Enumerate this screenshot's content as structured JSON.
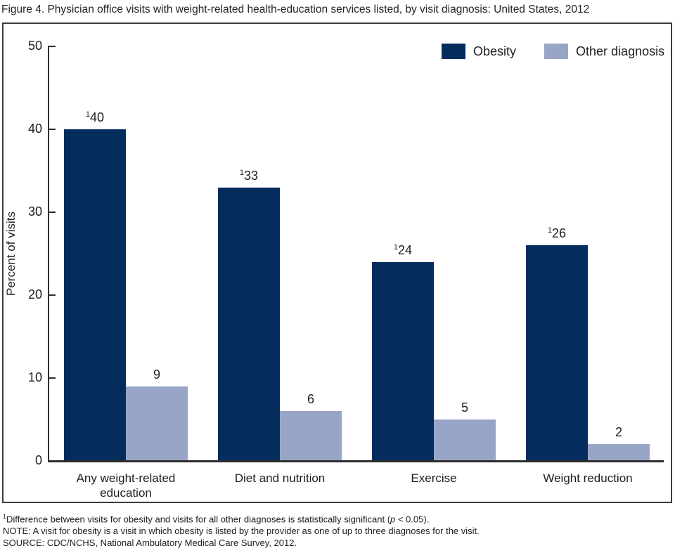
{
  "title": "Figure 4. Physician office visits with weight-related health-education services listed, by visit diagnosis: United States, 2012",
  "chart_data": {
    "type": "bar",
    "title": "Figure 4. Physician office visits with weight-related health-education services listed, by visit diagnosis: United States, 2012",
    "categories": [
      "Any weight-related\neducation",
      "Diet and nutrition",
      "Exercise",
      "Weight reduction"
    ],
    "series": [
      {
        "name": "Obesity",
        "color": "#042d5e",
        "values": [
          40,
          33,
          24,
          26
        ],
        "label_superscript": "1",
        "data_labels": [
          "40",
          "33",
          "24",
          "26"
        ]
      },
      {
        "name": "Other diagnosis",
        "color": "#99a5c7",
        "values": [
          9,
          6,
          5,
          2
        ],
        "label_superscript": "",
        "data_labels": [
          "9",
          "6",
          "5",
          "2"
        ]
      }
    ],
    "xlabel": "",
    "ylabel": "Percent of visits",
    "ylim": [
      0,
      50
    ],
    "yticks": [
      0,
      10,
      20,
      30,
      40,
      50
    ],
    "grid": false,
    "legend_position": "top-right",
    "bar_labels": true
  },
  "footnotes": {
    "significance_sup": "1",
    "significance_pre": "Difference between visits for obesity and visits for all other diagnoses is statistically significant (",
    "significance_p": "p",
    "significance_post": " < 0.05).",
    "note": "NOTE: A visit for obesity is a visit in which obesity is listed by the provider as one of up to three diagnoses for the visit.",
    "source": "SOURCE: CDC/NCHS, National Ambulatory Medical Care Survey, 2012."
  }
}
